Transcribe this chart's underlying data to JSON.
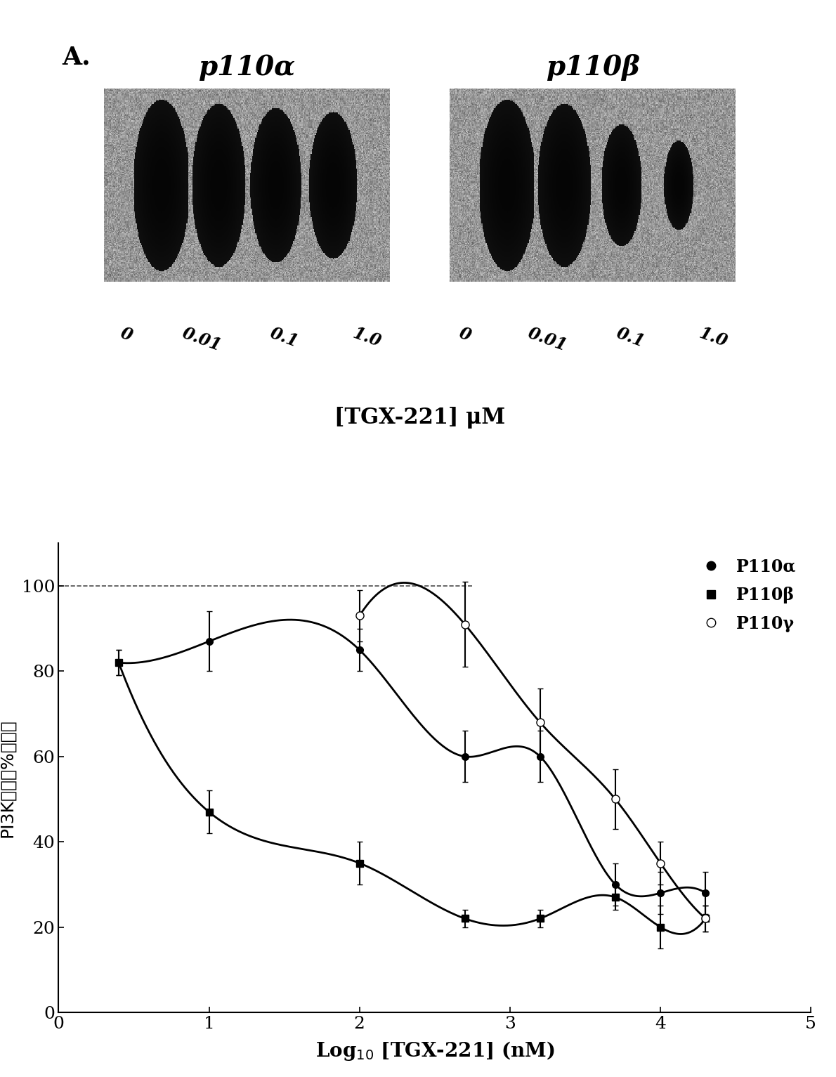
{
  "panel_label": "A.",
  "gel_label_left": "p110α",
  "gel_label_right": "p110β",
  "gel_ticks_left": [
    "0",
    "0.01",
    "0.1",
    "1.0"
  ],
  "gel_ticks_right": [
    "0",
    "0.01",
    "0.1",
    "1.0"
  ],
  "tgx_label": "[TGX-221] μM",
  "ylabel": "PI3K活性（%对照）",
  "xlabel": "Log$_{10}$ [TGX-221] (nM)",
  "xlim": [
    0,
    5
  ],
  "ylim": [
    0,
    110
  ],
  "yticks": [
    0,
    20,
    40,
    60,
    80,
    100
  ],
  "xticks": [
    0,
    1,
    2,
    3,
    4,
    5
  ],
  "legend_labels": [
    "P110α",
    "P110β",
    "P110γ"
  ],
  "legend_markers": [
    "circle_filled",
    "square_filled",
    "circle_open"
  ],
  "p110a_x": [
    0.4,
    1.0,
    2.0,
    2.7,
    3.2,
    3.7,
    4.0,
    4.3
  ],
  "p110a_y": [
    82,
    87,
    85,
    60,
    60,
    30,
    28,
    28
  ],
  "p110a_yerr": [
    3,
    7,
    5,
    6,
    6,
    5,
    5,
    5
  ],
  "p110b_x": [
    0.4,
    1.0,
    2.0,
    2.7,
    3.2,
    3.7,
    4.0,
    4.3
  ],
  "p110b_y": [
    82,
    47,
    35,
    22,
    22,
    27,
    20,
    22
  ],
  "p110b_yerr": [
    3,
    5,
    5,
    2,
    2,
    3,
    5,
    3
  ],
  "p110g_x": [
    2.0,
    2.7,
    3.2,
    3.7,
    4.0,
    4.3
  ],
  "p110g_y": [
    93,
    91,
    68,
    50,
    35,
    22
  ],
  "p110g_yerr": [
    6,
    10,
    8,
    7,
    5,
    3
  ],
  "curve_color": "#000000",
  "background_color": "#ffffff",
  "dashed_line_y": 100,
  "gel_blob_color": "#111111"
}
